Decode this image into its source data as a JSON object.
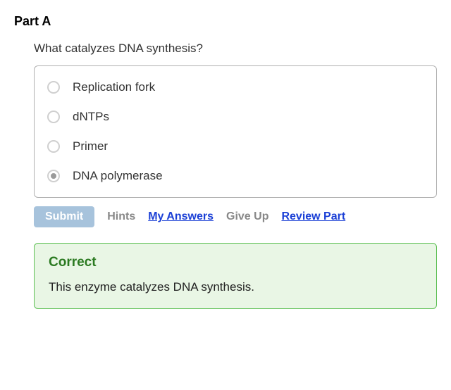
{
  "part_heading": "Part A",
  "question_text": "What catalyzes DNA synthesis?",
  "options": {
    "0": {
      "label": "Replication fork",
      "selected": false
    },
    "1": {
      "label": "dNTPs",
      "selected": false
    },
    "2": {
      "label": "Primer",
      "selected": false
    },
    "3": {
      "label": "DNA polymerase",
      "selected": true
    }
  },
  "actions": {
    "submit_label": "Submit",
    "hints_label": "Hints",
    "my_answers_label": "My Answers",
    "give_up_label": "Give Up",
    "review_part_label": "Review Part"
  },
  "feedback": {
    "title": "Correct",
    "text": "This enzyme catalyzes DNA synthesis.",
    "title_color": "#2b7a21",
    "background": "#e9f6e5",
    "border_color": "#5bbf52"
  },
  "colors": {
    "submit_bg": "#a7c3dc",
    "link_active": "#1a3fd6",
    "link_disabled": "#888888",
    "options_border": "#b0b0b0",
    "radio_border": "#cfcfcf",
    "radio_dot": "#9a9a9a"
  }
}
